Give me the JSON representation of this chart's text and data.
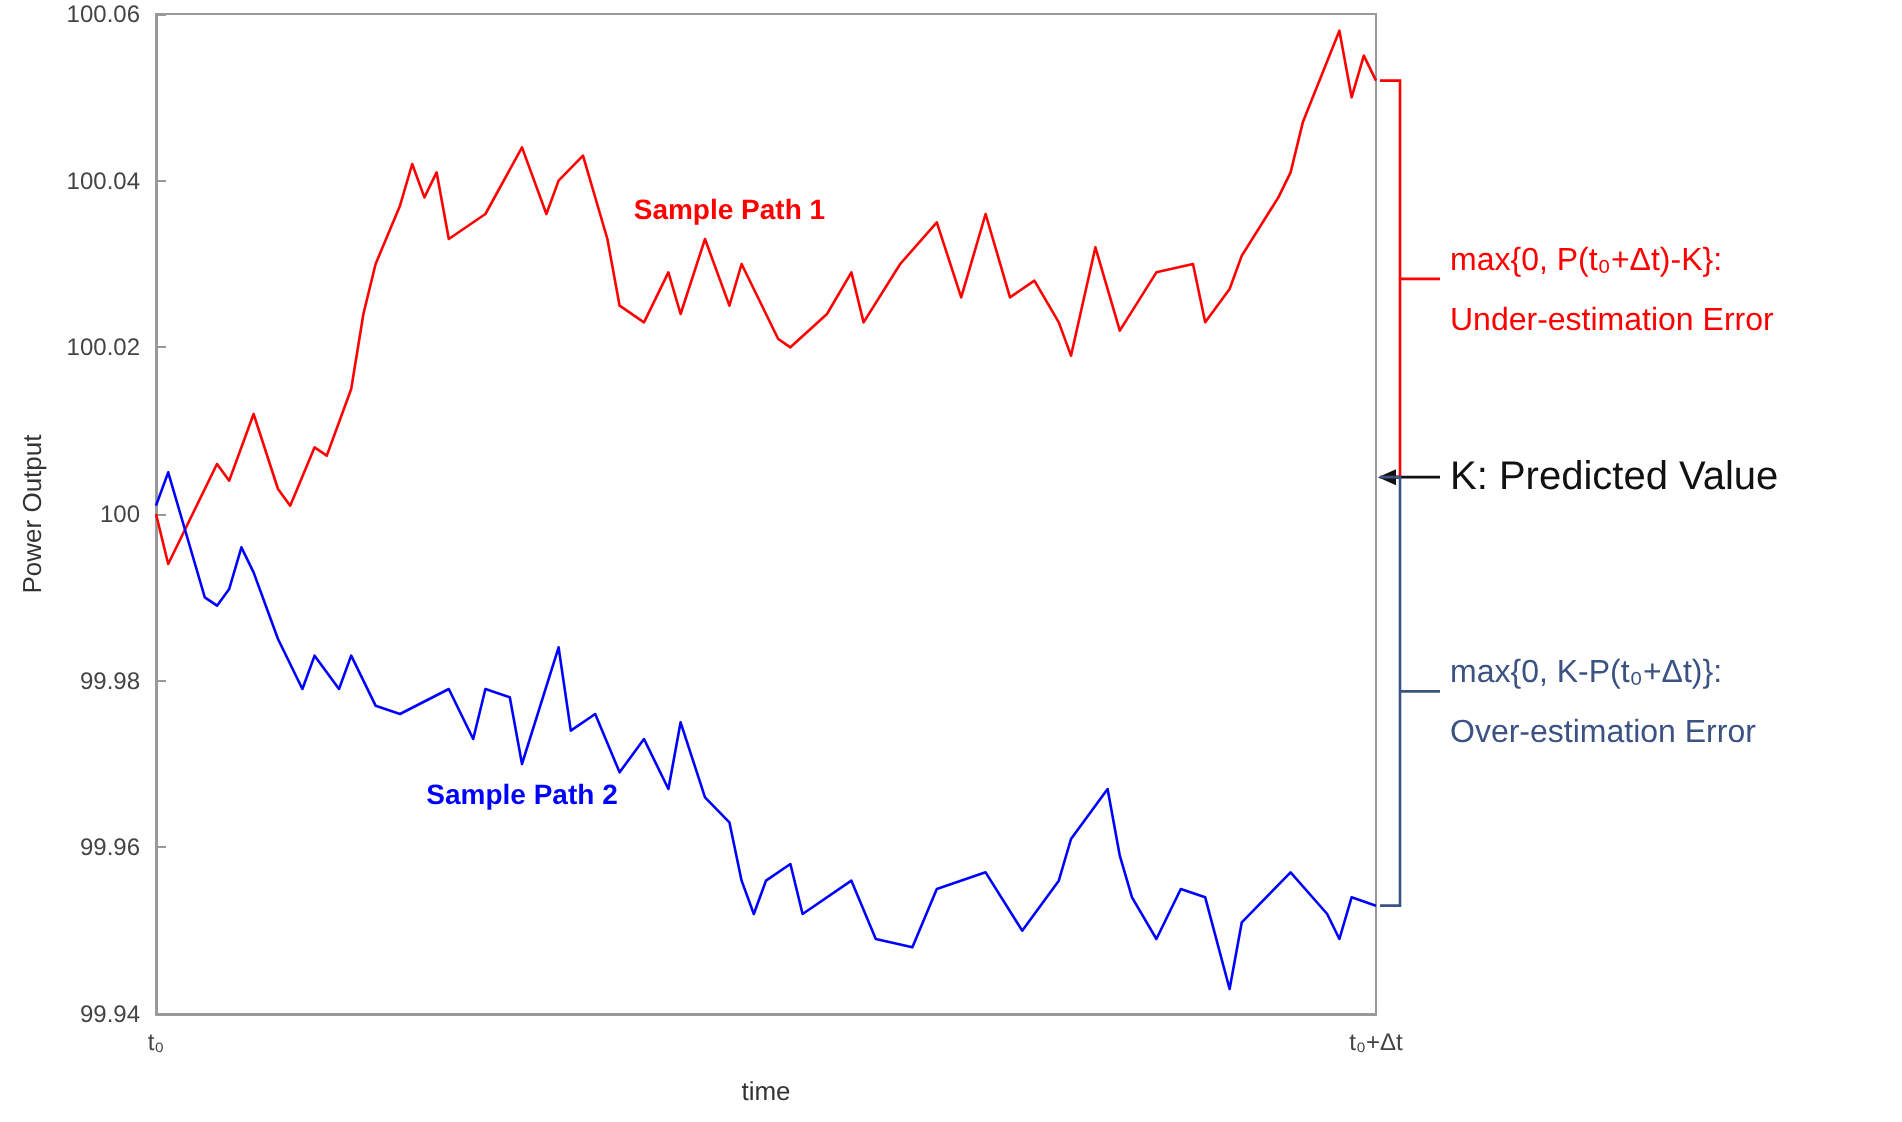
{
  "chart_data": {
    "type": "line",
    "xlabel": "time",
    "ylabel": "Power Output",
    "categories": [
      "t₀",
      null,
      null,
      null,
      null,
      null,
      null,
      null,
      null,
      null,
      null,
      null,
      null,
      null,
      null,
      null,
      null,
      null,
      null,
      null,
      null,
      null,
      null,
      null,
      null,
      null,
      null,
      null,
      null,
      null,
      null,
      null,
      null,
      null,
      null,
      null,
      null,
      null,
      null,
      null,
      null,
      null,
      null,
      null,
      null,
      null,
      null,
      null,
      null,
      null,
      null,
      null,
      null,
      null,
      null,
      null,
      null,
      null,
      null,
      null,
      null,
      null,
      null,
      null,
      null,
      null,
      null,
      null,
      null,
      null,
      null,
      null,
      null,
      null,
      null,
      null,
      null,
      null,
      null,
      null,
      null,
      null,
      null,
      null,
      null,
      null,
      null,
      null,
      null,
      null,
      null,
      null,
      null,
      null,
      null,
      null,
      null,
      null,
      null,
      null,
      "t₀+Δt"
    ],
    "ylim": [
      99.94,
      100.06
    ],
    "yticks": [
      99.94,
      99.96,
      99.98,
      100,
      100.02,
      100.04,
      100.06
    ],
    "grid": false,
    "legend": false,
    "marker": "none",
    "line_style": "solid",
    "series": [
      {
        "name": "Sample Path 1",
        "color": "#ff0000",
        "values": [
          100.0,
          99.994,
          null,
          100.0,
          null,
          100.006,
          100.004,
          null,
          100.012,
          null,
          100.003,
          100.001,
          null,
          100.008,
          100.007,
          null,
          100.015,
          100.024,
          100.03,
          null,
          100.037,
          100.042,
          100.038,
          100.041,
          100.033,
          null,
          null,
          100.036,
          null,
          null,
          100.044,
          null,
          100.036,
          100.04,
          null,
          100.043,
          null,
          100.033,
          100.025,
          null,
          100.023,
          null,
          100.029,
          100.024,
          null,
          100.033,
          null,
          100.025,
          100.03,
          null,
          100.024,
          100.021,
          100.02,
          null,
          null,
          100.024,
          null,
          100.029,
          100.023,
          null,
          null,
          100.03,
          null,
          null,
          100.035,
          null,
          100.026,
          null,
          100.036,
          null,
          100.026,
          null,
          100.028,
          null,
          100.023,
          100.019,
          null,
          100.032,
          null,
          100.022,
          null,
          null,
          100.029,
          null,
          null,
          100.03,
          100.023,
          null,
          100.027,
          100.031,
          null,
          null,
          100.038,
          100.041,
          100.047,
          null,
          null,
          100.058,
          100.05,
          100.055,
          100.052
        ]
      },
      {
        "name": "Sample Path 2",
        "color": "#0000ff",
        "values": [
          100.001,
          100.005,
          100.0,
          null,
          99.99,
          99.989,
          99.991,
          99.996,
          99.993,
          null,
          99.985,
          null,
          99.979,
          99.983,
          null,
          99.979,
          99.983,
          null,
          99.977,
          null,
          99.976,
          null,
          null,
          null,
          99.979,
          null,
          99.973,
          99.979,
          null,
          99.978,
          99.97,
          null,
          null,
          99.984,
          99.974,
          null,
          99.976,
          null,
          99.969,
          null,
          99.973,
          null,
          99.967,
          99.975,
          null,
          99.966,
          null,
          99.963,
          99.956,
          99.952,
          99.956,
          null,
          99.958,
          99.952,
          null,
          null,
          null,
          99.956,
          null,
          99.949,
          null,
          null,
          99.948,
          null,
          99.955,
          null,
          null,
          null,
          99.957,
          null,
          null,
          99.95,
          null,
          null,
          99.956,
          99.961,
          null,
          null,
          99.967,
          99.959,
          99.954,
          null,
          99.949,
          null,
          99.955,
          null,
          99.954,
          null,
          99.943,
          99.951,
          null,
          null,
          null,
          99.957,
          null,
          null,
          99.952,
          99.949,
          99.954,
          null,
          99.953
        ]
      }
    ],
    "annotations": [
      "max{0, P(t₀+Δt)-K}:\nUnder-estimation Error",
      "K: Predicted Value",
      "max{0, K-P(t₀+Δt)}:\nOver-estimation Error"
    ]
  }
}
